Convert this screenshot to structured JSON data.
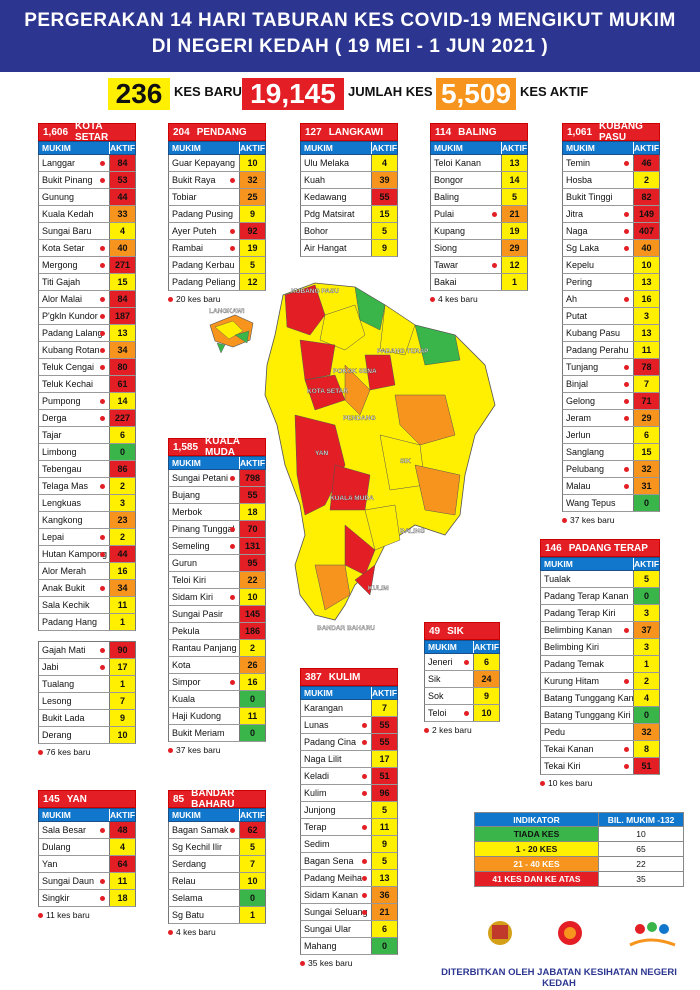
{
  "header": {
    "line1": "PERGERAKAN 14 HARI TABURAN KES COVID-19 MENGIKUT MUKIM",
    "line2": "DI NEGERI KEDAH ( 19 MEI - 1 JUN 2021 )"
  },
  "summary": {
    "baru_value": "236",
    "baru_label": "KES BARU",
    "jumlah_value": "19,145",
    "jumlah_label": "JUMLAH KES",
    "aktif_value": "5,509",
    "aktif_label": "KES AKTIF"
  },
  "colors": {
    "high": "#e31e24",
    "mid": "#f7941d",
    "low": "#ffef00",
    "none": "#39b54a",
    "header": "#2c3690",
    "col_header": "#1177cc"
  },
  "col_mukim": "MUKIM",
  "col_aktif": "AKTIF",
  "tables": {
    "kota_setar": {
      "total": "1,606",
      "name": "KOTA SETAR",
      "foot": "",
      "rows": [
        {
          "m": "Langgar",
          "v": "84",
          "dot": true
        },
        {
          "m": "Bukit Pinang",
          "v": "53",
          "dot": true
        },
        {
          "m": "Gunung",
          "v": "44",
          "dot": false
        },
        {
          "m": "Kuala Kedah",
          "v": "33",
          "dot": false
        },
        {
          "m": "Sungai Baru",
          "v": "4",
          "dot": false
        },
        {
          "m": "Kota Setar",
          "v": "40",
          "dot": true
        },
        {
          "m": "Mergong",
          "v": "271",
          "dot": true
        },
        {
          "m": "Titi Gajah",
          "v": "15",
          "dot": false
        },
        {
          "m": "Alor Malai",
          "v": "84",
          "dot": true
        },
        {
          "m": "P'gkln Kundor",
          "v": "187",
          "dot": true
        },
        {
          "m": "Padang Lalang",
          "v": "13",
          "dot": true
        },
        {
          "m": "Kubang Rotan",
          "v": "34",
          "dot": true
        },
        {
          "m": "Teluk Cengai",
          "v": "80",
          "dot": true
        },
        {
          "m": "Teluk Kechai",
          "v": "61",
          "dot": false
        },
        {
          "m": "Pumpong",
          "v": "14",
          "dot": true
        },
        {
          "m": "Derga",
          "v": "227",
          "dot": true
        },
        {
          "m": "Tajar",
          "v": "6",
          "dot": false
        },
        {
          "m": "Limbong",
          "v": "0",
          "dot": false
        },
        {
          "m": "Tebengau",
          "v": "86",
          "dot": false
        },
        {
          "m": "Telaga Mas",
          "v": "2",
          "dot": true
        },
        {
          "m": "Lengkuas",
          "v": "3",
          "dot": false
        },
        {
          "m": "Kangkong",
          "v": "23",
          "dot": false
        },
        {
          "m": "Lepai",
          "v": "2",
          "dot": true
        },
        {
          "m": "Hutan Kampong",
          "v": "44",
          "dot": true
        },
        {
          "m": "Alor Merah",
          "v": "16",
          "dot": false
        },
        {
          "m": "Anak Bukit",
          "v": "34",
          "dot": true
        },
        {
          "m": "Sala Kechik",
          "v": "11",
          "dot": false
        },
        {
          "m": "Padang Hang",
          "v": "1",
          "dot": false
        }
      ]
    },
    "kota_setar2": {
      "foot": "76 kes baru",
      "rows": [
        {
          "m": "Gajah Mati",
          "v": "90",
          "dot": true
        },
        {
          "m": "Jabi",
          "v": "17",
          "dot": true
        },
        {
          "m": "Tualang",
          "v": "1",
          "dot": false
        },
        {
          "m": "Lesong",
          "v": "7",
          "dot": false
        },
        {
          "m": "Bukit Lada",
          "v": "9",
          "dot": false
        },
        {
          "m": "Derang",
          "v": "10",
          "dot": false
        }
      ]
    },
    "pendang": {
      "total": "204",
      "name": "PENDANG",
      "foot": "20 kes baru",
      "rows": [
        {
          "m": "Guar Kepayang",
          "v": "10",
          "dot": false
        },
        {
          "m": "Bukit Raya",
          "v": "32",
          "dot": true
        },
        {
          "m": "Tobiar",
          "v": "25",
          "dot": false
        },
        {
          "m": "Padang Pusing",
          "v": "9",
          "dot": false
        },
        {
          "m": "Ayer Puteh",
          "v": "92",
          "dot": true
        },
        {
          "m": "Rambai",
          "v": "19",
          "dot": true
        },
        {
          "m": "Padang Kerbau",
          "v": "5",
          "dot": false
        },
        {
          "m": "Padang Peliang",
          "v": "12",
          "dot": false
        }
      ]
    },
    "langkawi": {
      "total": "127",
      "name": "LANGKAWI",
      "foot": "",
      "rows": [
        {
          "m": "Ulu Melaka",
          "v": "4",
          "dot": false
        },
        {
          "m": "Kuah",
          "v": "39",
          "dot": false
        },
        {
          "m": "Kedawang",
          "v": "55",
          "dot": false
        },
        {
          "m": "Pdg Matsirat",
          "v": "15",
          "dot": false
        },
        {
          "m": "Bohor",
          "v": "5",
          "dot": false
        },
        {
          "m": "Air Hangat",
          "v": "9",
          "dot": false
        }
      ]
    },
    "baling": {
      "total": "114",
      "name": "BALING",
      "foot": "4 kes baru",
      "rows": [
        {
          "m": "Teloi Kanan",
          "v": "13",
          "dot": false
        },
        {
          "m": "Bongor",
          "v": "14",
          "dot": false
        },
        {
          "m": "Baling",
          "v": "5",
          "dot": false
        },
        {
          "m": "Pulai",
          "v": "21",
          "dot": true
        },
        {
          "m": "Kupang",
          "v": "19",
          "dot": false
        },
        {
          "m": "Siong",
          "v": "29",
          "dot": false
        },
        {
          "m": "Tawar",
          "v": "12",
          "dot": true
        },
        {
          "m": "Bakai",
          "v": "1",
          "dot": false
        }
      ]
    },
    "kubang_pasu": {
      "total": "1,061",
      "name": "KUBANG PASU",
      "foot": "37 kes baru",
      "rows": [
        {
          "m": "Temin",
          "v": "46",
          "dot": true
        },
        {
          "m": "Hosba",
          "v": "2",
          "dot": false
        },
        {
          "m": "Bukit Tinggi",
          "v": "82",
          "dot": false
        },
        {
          "m": "Jitra",
          "v": "149",
          "dot": true
        },
        {
          "m": "Naga",
          "v": "407",
          "dot": true
        },
        {
          "m": "Sg Laka",
          "v": "40",
          "dot": true
        },
        {
          "m": "Kepelu",
          "v": "10",
          "dot": false
        },
        {
          "m": "Pering",
          "v": "13",
          "dot": false
        },
        {
          "m": "Ah",
          "v": "16",
          "dot": true
        },
        {
          "m": "Putat",
          "v": "3",
          "dot": false
        },
        {
          "m": "Kubang Pasu",
          "v": "13",
          "dot": false
        },
        {
          "m": "Padang Perahu",
          "v": "11",
          "dot": false
        },
        {
          "m": "Tunjang",
          "v": "78",
          "dot": true
        },
        {
          "m": "Binjal",
          "v": "7",
          "dot": true
        },
        {
          "m": "Gelong",
          "v": "71",
          "dot": true
        },
        {
          "m": "Jeram",
          "v": "29",
          "dot": true
        },
        {
          "m": "Jerlun",
          "v": "6",
          "dot": false
        },
        {
          "m": "Sanglang",
          "v": "15",
          "dot": false
        },
        {
          "m": "Pelubang",
          "v": "32",
          "dot": true
        },
        {
          "m": "Malau",
          "v": "31",
          "dot": true
        },
        {
          "m": "Wang Tepus",
          "v": "0",
          "dot": false
        }
      ]
    },
    "kuala_muda": {
      "total": "1,585",
      "name": "KUALA MUDA",
      "foot": "37 kes baru",
      "rows": [
        {
          "m": "Sungai Petani",
          "v": "798",
          "dot": true
        },
        {
          "m": "Bujang",
          "v": "55",
          "dot": false
        },
        {
          "m": "Merbok",
          "v": "18",
          "dot": false
        },
        {
          "m": "Pinang Tunggal",
          "v": "70",
          "dot": true
        },
        {
          "m": "Semeling",
          "v": "131",
          "dot": true
        },
        {
          "m": "Gurun",
          "v": "95",
          "dot": false
        },
        {
          "m": "Teloi Kiri",
          "v": "22",
          "dot": false
        },
        {
          "m": "Sidam Kiri",
          "v": "10",
          "dot": true
        },
        {
          "m": "Sungai Pasir",
          "v": "145",
          "dot": false
        },
        {
          "m": "Pekula",
          "v": "186",
          "dot": false
        },
        {
          "m": "Rantau Panjang",
          "v": "2",
          "dot": false
        },
        {
          "m": "Kota",
          "v": "26",
          "dot": false
        },
        {
          "m": "Simpor",
          "v": "16",
          "dot": true
        },
        {
          "m": "Kuala",
          "v": "0",
          "dot": false
        },
        {
          "m": "Haji Kudong",
          "v": "11",
          "dot": false
        },
        {
          "m": "Bukit Meriam",
          "v": "0",
          "dot": false
        }
      ]
    },
    "padang_terap": {
      "total": "146",
      "name": "PADANG TERAP",
      "foot": "10 kes baru",
      "rows": [
        {
          "m": "Tualak",
          "v": "5",
          "dot": false
        },
        {
          "m": "Padang Terap Kanan",
          "v": "0",
          "dot": false
        },
        {
          "m": "Padang Terap Kiri",
          "v": "3",
          "dot": false
        },
        {
          "m": "Belimbing Kanan",
          "v": "37",
          "dot": true
        },
        {
          "m": "Belimbing Kiri",
          "v": "3",
          "dot": false
        },
        {
          "m": "Padang Temak",
          "v": "1",
          "dot": false
        },
        {
          "m": "Kurung Hitam",
          "v": "2",
          "dot": true
        },
        {
          "m": "Batang Tunggang Kanan",
          "v": "4",
          "dot": false
        },
        {
          "m": "Batang Tunggang Kiri",
          "v": "0",
          "dot": false
        },
        {
          "m": "Pedu",
          "v": "32",
          "dot": false
        },
        {
          "m": "Tekai Kanan",
          "v": "8",
          "dot": true
        },
        {
          "m": "Tekai Kiri",
          "v": "51",
          "dot": true
        }
      ]
    },
    "sik": {
      "total": "49",
      "name": "SIK",
      "foot": "2 kes baru",
      "rows": [
        {
          "m": "Jeneri",
          "v": "6",
          "dot": true
        },
        {
          "m": "Sik",
          "v": "24",
          "dot": false
        },
        {
          "m": "Sok",
          "v": "9",
          "dot": false
        },
        {
          "m": "Teloi",
          "v": "10",
          "dot": true
        }
      ]
    },
    "kulim": {
      "total": "387",
      "name": "KULIM",
      "foot": "35 kes baru",
      "rows": [
        {
          "m": "Karangan",
          "v": "7",
          "dot": false
        },
        {
          "m": "Lunas",
          "v": "55",
          "dot": true
        },
        {
          "m": "Padang Cina",
          "v": "55",
          "dot": true
        },
        {
          "m": "Naga Lilit",
          "v": "17",
          "dot": false
        },
        {
          "m": "Keladi",
          "v": "51",
          "dot": true
        },
        {
          "m": "Kulim",
          "v": "96",
          "dot": true
        },
        {
          "m": "Junjong",
          "v": "5",
          "dot": false
        },
        {
          "m": "Terap",
          "v": "11",
          "dot": true
        },
        {
          "m": "Sedim",
          "v": "9",
          "dot": false
        },
        {
          "m": "Bagan Sena",
          "v": "5",
          "dot": true
        },
        {
          "m": "Padang Meiha",
          "v": "13",
          "dot": true
        },
        {
          "m": "Sidam Kanan",
          "v": "36",
          "dot": true
        },
        {
          "m": "Sungai Seluang",
          "v": "21",
          "dot": true
        },
        {
          "m": "Sungai Ular",
          "v": "6",
          "dot": false
        },
        {
          "m": "Mahang",
          "v": "0",
          "dot": false
        }
      ]
    },
    "yan": {
      "total": "145",
      "name": "YAN",
      "foot": "11 kes baru",
      "rows": [
        {
          "m": "Sala Besar",
          "v": "48",
          "dot": true
        },
        {
          "m": "Dulang",
          "v": "4",
          "dot": false
        },
        {
          "m": "Yan",
          "v": "64",
          "dot": false
        },
        {
          "m": "Sungai Daun",
          "v": "11",
          "dot": true
        },
        {
          "m": "Singkir",
          "v": "18",
          "dot": true
        }
      ]
    },
    "bandar_baharu": {
      "total": "85",
      "name": "BANDAR BAHARU",
      "foot": "4 kes baru",
      "rows": [
        {
          "m": "Bagan Samak",
          "v": "62",
          "dot": true
        },
        {
          "m": "Sg Kechil Ilir",
          "v": "5",
          "dot": false
        },
        {
          "m": "Serdang",
          "v": "7",
          "dot": false
        },
        {
          "m": "Relau",
          "v": "10",
          "dot": false
        },
        {
          "m": "Selama",
          "v": "0",
          "dot": false
        },
        {
          "m": "Sg Batu",
          "v": "1",
          "dot": false
        }
      ]
    }
  },
  "map_labels": {
    "kubang_pasu": "KUBANG PASU",
    "langkawi": "LANGKAWI",
    "padang_terap": "PADANG TERAP",
    "pokok_sena": "POKOK SENA",
    "kota_setar": "KOTA SETAR",
    "pendang": "PENDANG",
    "yan": "YAN",
    "sik": "SIK",
    "kuala_muda": "KUALA MUDA",
    "baling": "BALING",
    "kulim": "KULIM",
    "bandar_baharu": "BANDAR BAHARU"
  },
  "legend": {
    "h1": "INDIKATOR",
    "h2": "BIL. MUKIM -132",
    "rows": [
      {
        "label": "TIADA KES",
        "value": "10",
        "color": "#39b54a"
      },
      {
        "label": "1 - 20 KES",
        "value": "65",
        "color": "#ffef00"
      },
      {
        "label": "21 - 40 KES",
        "value": "22",
        "color": "#f7941d"
      },
      {
        "label": "41 KES DAN KE ATAS",
        "value": "35",
        "color": "#e31e24"
      }
    ]
  },
  "publisher": "DITERBITKAN OLEH JABATAN KESIHATAN NEGERI KEDAH"
}
